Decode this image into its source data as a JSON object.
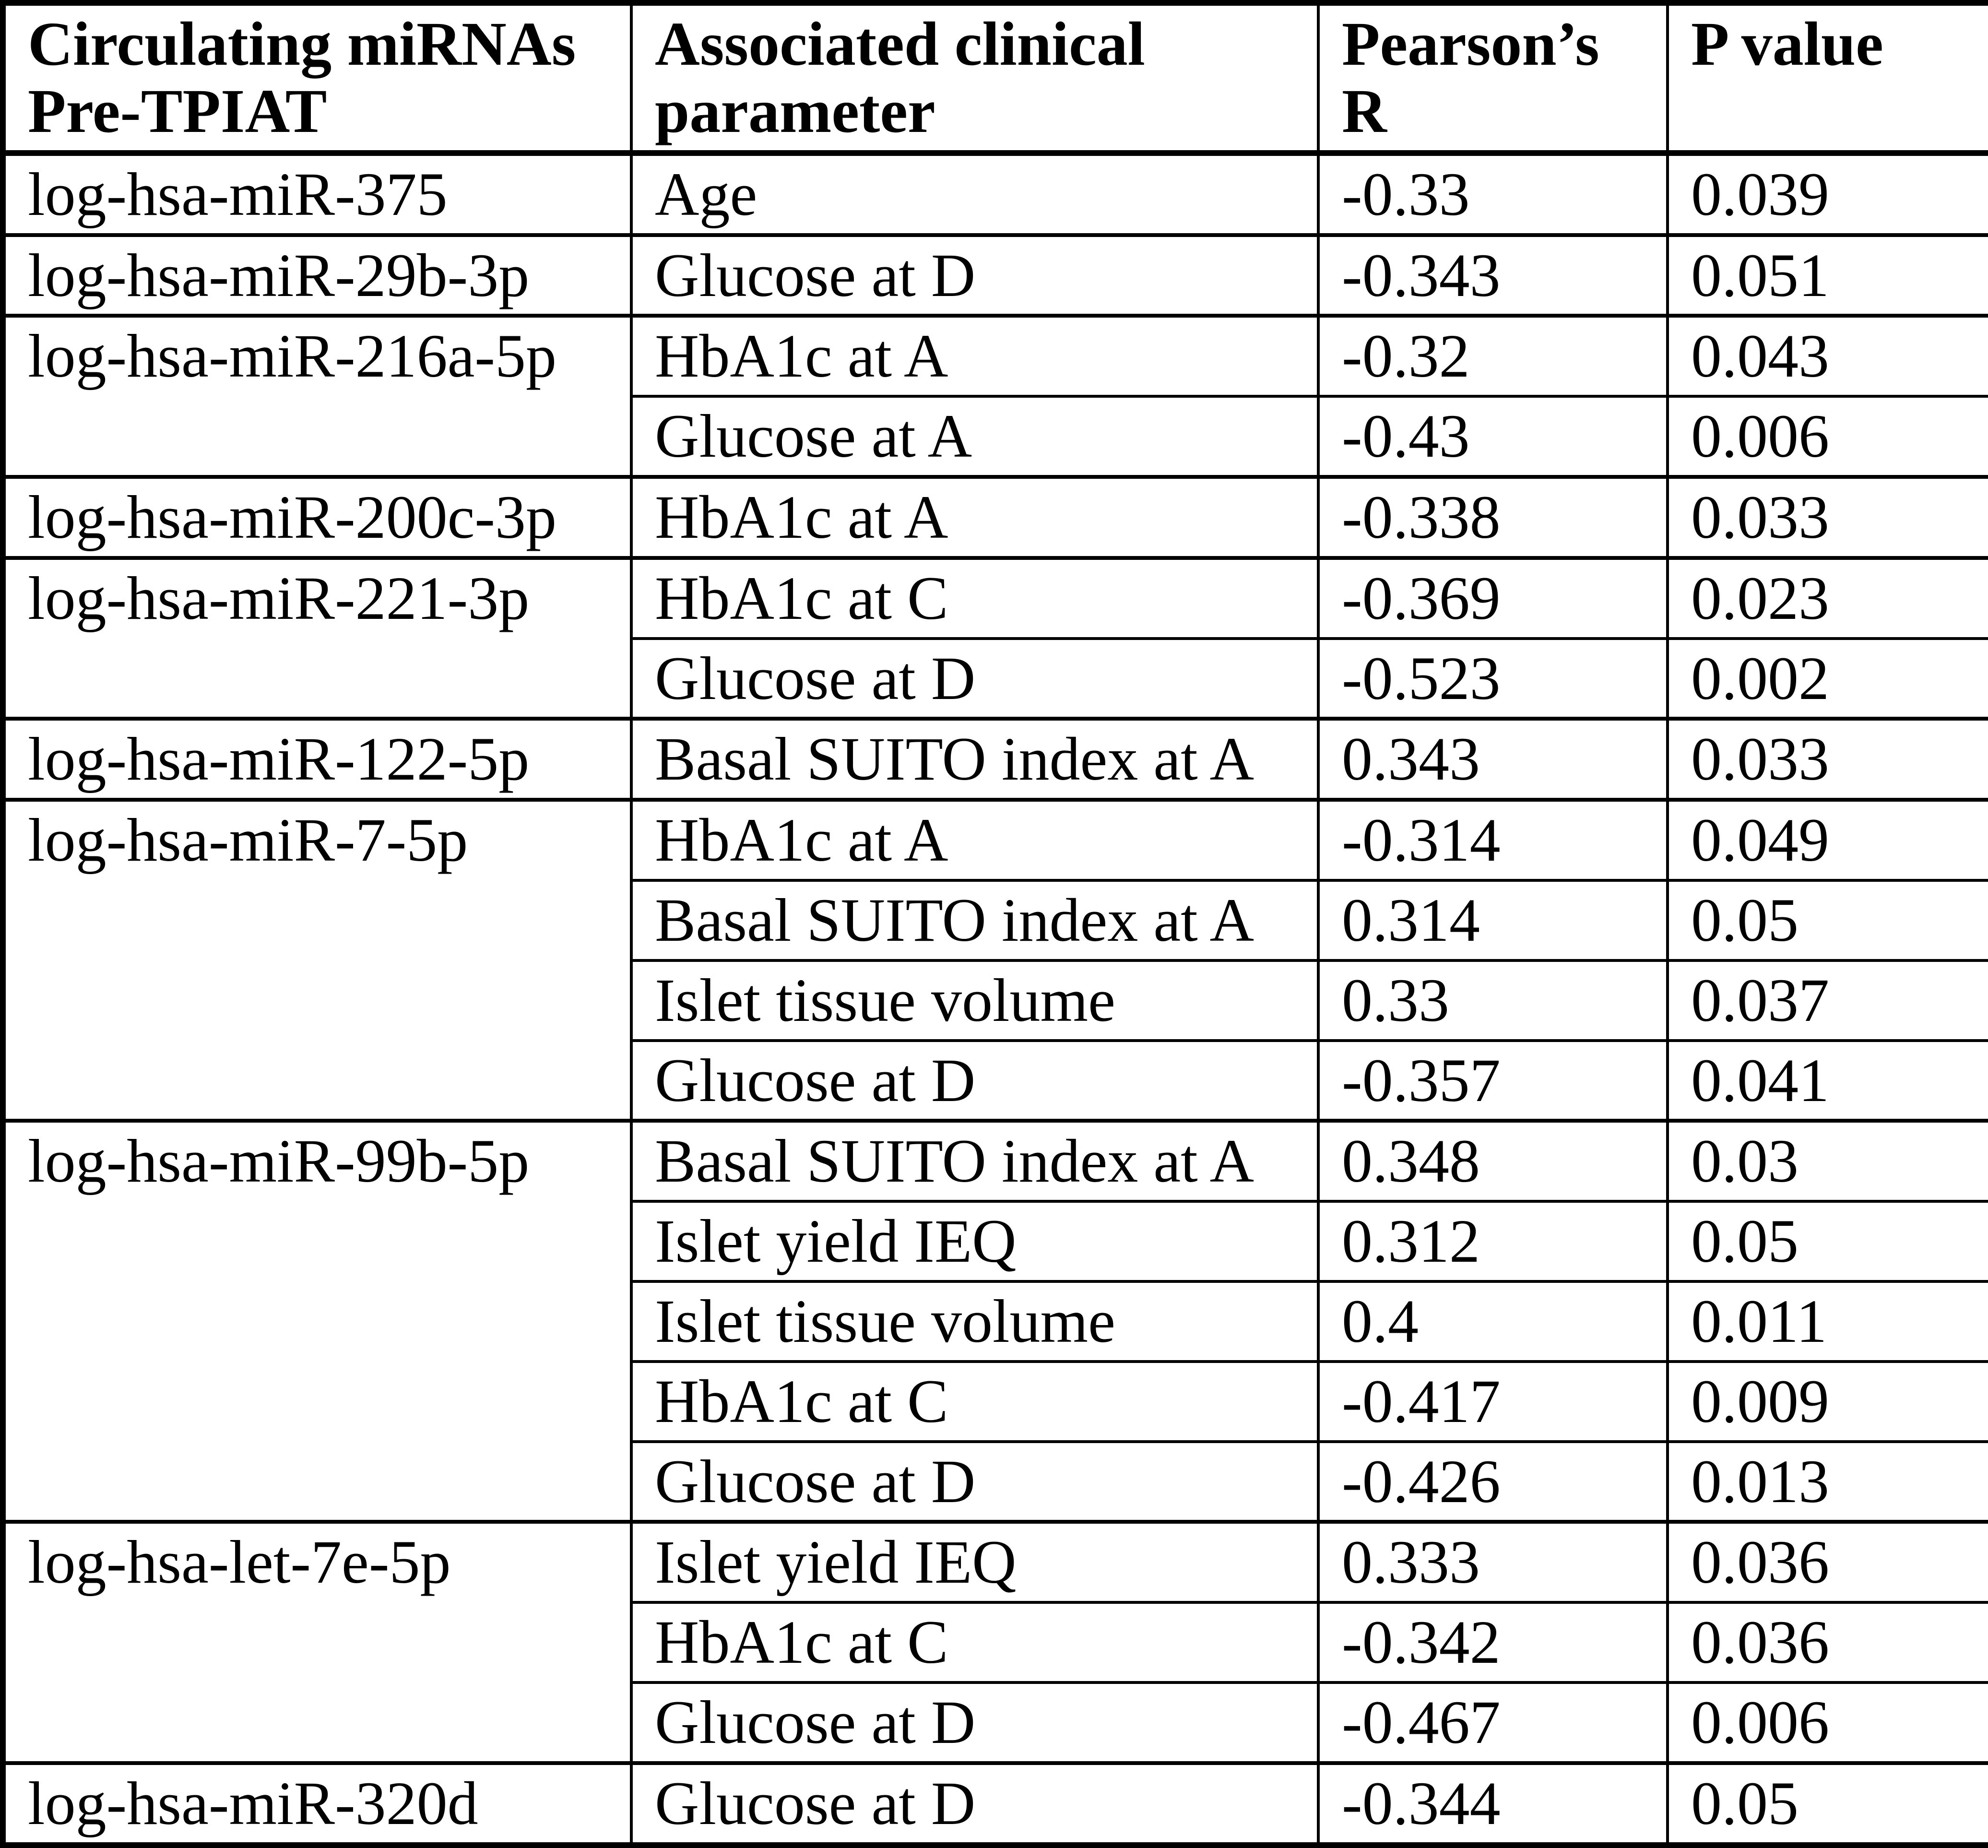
{
  "table": {
    "header": {
      "mirna": "Circulating miRNAs\nPre-TPIAT",
      "parameter": "Associated clinical\nparameter",
      "pearson_r": "Pearson’s\nR",
      "p_value": "P value"
    },
    "groups": [
      {
        "mirna": "log-hsa-miR-375",
        "rows": [
          {
            "parameter": "Age",
            "pearson_r": "-0.33",
            "p_value": "0.039"
          }
        ]
      },
      {
        "mirna": "log-hsa-miR-29b-3p",
        "rows": [
          {
            "parameter": "Glucose at D",
            "pearson_r": "-0.343",
            "p_value": "0.051"
          }
        ]
      },
      {
        "mirna": "log-hsa-miR-216a-5p",
        "rows": [
          {
            "parameter": "HbA1c at A",
            "pearson_r": "-0.32",
            "p_value": "0.043"
          },
          {
            "parameter": "Glucose at A",
            "pearson_r": "-0.43",
            "p_value": "0.006"
          }
        ]
      },
      {
        "mirna": "log-hsa-miR-200c-3p",
        "rows": [
          {
            "parameter": "HbA1c at A",
            "pearson_r": "-0.338",
            "p_value": "0.033"
          }
        ]
      },
      {
        "mirna": "log-hsa-miR-221-3p",
        "rows": [
          {
            "parameter": "HbA1c at C",
            "pearson_r": "-0.369",
            "p_value": "0.023"
          },
          {
            "parameter": "Glucose at D",
            "pearson_r": "-0.523",
            "p_value": "0.002"
          }
        ]
      },
      {
        "mirna": "log-hsa-miR-122-5p",
        "rows": [
          {
            "parameter": "Basal SUITO index at A",
            "pearson_r": "0.343",
            "p_value": "0.033"
          }
        ]
      },
      {
        "mirna": "log-hsa-miR-7-5p",
        "rows": [
          {
            "parameter": "HbA1c at A",
            "pearson_r": "-0.314",
            "p_value": "0.049"
          },
          {
            "parameter": "Basal SUITO index at A",
            "pearson_r": "0.314",
            "p_value": "0.05"
          },
          {
            "parameter": "Islet tissue volume",
            "pearson_r": "0.33",
            "p_value": "0.037"
          },
          {
            "parameter": "Glucose at D",
            "pearson_r": "-0.357",
            "p_value": "0.041"
          }
        ]
      },
      {
        "mirna": "log-hsa-miR-99b-5p",
        "rows": [
          {
            "parameter": "Basal SUITO index at A",
            "pearson_r": "0.348",
            "p_value": "0.03"
          },
          {
            "parameter": "Islet yield IEQ",
            "pearson_r": "0.312",
            "p_value": "0.05"
          },
          {
            "parameter": "Islet tissue volume",
            "pearson_r": "0.4",
            "p_value": "0.011"
          },
          {
            "parameter": "HbA1c at C",
            "pearson_r": "-0.417",
            "p_value": "0.009"
          },
          {
            "parameter": "Glucose at D",
            "pearson_r": "-0.426",
            "p_value": "0.013"
          }
        ]
      },
      {
        "mirna": "log-hsa-let-7e-5p",
        "rows": [
          {
            "parameter": "Islet yield IEQ",
            "pearson_r": "0.333",
            "p_value": "0.036"
          },
          {
            "parameter": "HbA1c at C",
            "pearson_r": "-0.342",
            "p_value": "0.036"
          },
          {
            "parameter": "Glucose at D",
            "pearson_r": "-0.467",
            "p_value": "0.006"
          }
        ]
      },
      {
        "mirna": "log-hsa-miR-320d",
        "rows": [
          {
            "parameter": "Glucose at D",
            "pearson_r": "-0.344",
            "p_value": "0.05"
          }
        ]
      }
    ]
  }
}
